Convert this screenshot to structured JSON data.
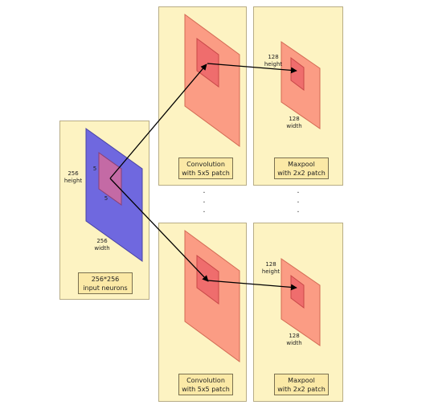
{
  "input": {
    "height_value": "256",
    "height_unit": "height",
    "width_value": "256",
    "width_unit": "width",
    "patch_side_top": "5",
    "patch_side_bottom": "5",
    "label_line1": "256*256",
    "label_line2": "input neurons"
  },
  "conv": {
    "label_line1": "Convolution",
    "label_line2": "with 5x5 patch"
  },
  "pool": {
    "label_line1": "Maxpool",
    "label_line2": "with 2x2 patch",
    "height_value": "128",
    "height_unit": "height",
    "width_value": "128",
    "width_unit": "width"
  },
  "ellipsis": ".",
  "colors": {
    "panel": "#fdf3c2",
    "input_plane": "#6f68df",
    "feature_plane": "#fb9c84",
    "patch": "#ef6d6d",
    "arrow": "#000000"
  }
}
